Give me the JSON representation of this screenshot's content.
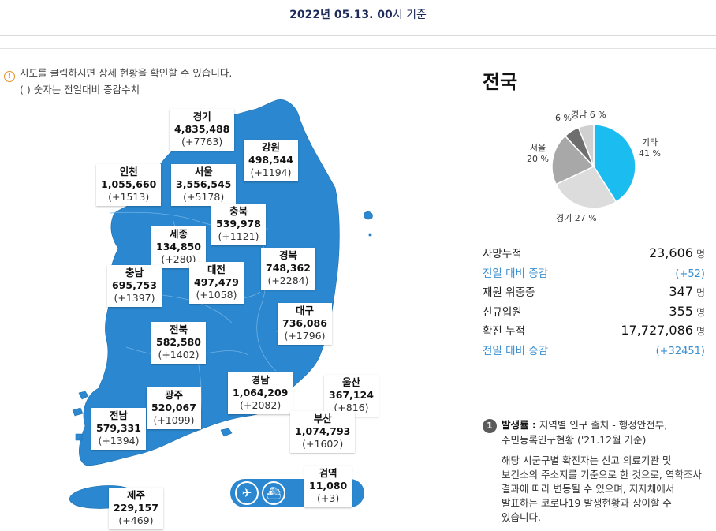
{
  "header": {
    "date_prefix": "2022년 05.13. 00",
    "date_suffix": "시 기준"
  },
  "notice": {
    "line1": "시도를 클릭하시면 상세 현황을 확인할 수 있습니다.",
    "line2": "( ) 숫자는 전일대비 증감수치",
    "icon": "info-icon"
  },
  "regions": [
    {
      "name": "경기",
      "count": "4,835,488",
      "delta": "(+7763)"
    },
    {
      "name": "강원",
      "count": "498,544",
      "delta": "(+1194)"
    },
    {
      "name": "인천",
      "count": "1,055,660",
      "delta": "(+1513)"
    },
    {
      "name": "서울",
      "count": "3,556,545",
      "delta": "(+5178)"
    },
    {
      "name": "충북",
      "count": "539,978",
      "delta": "(+1121)"
    },
    {
      "name": "세종",
      "count": "134,850",
      "delta": "(+280)"
    },
    {
      "name": "경북",
      "count": "748,362",
      "delta": "(+2284)"
    },
    {
      "name": "충남",
      "count": "695,753",
      "delta": "(+1397)"
    },
    {
      "name": "대전",
      "count": "497,479",
      "delta": "(+1058)"
    },
    {
      "name": "대구",
      "count": "736,086",
      "delta": "(+1796)"
    },
    {
      "name": "전북",
      "count": "582,580",
      "delta": "(+1402)"
    },
    {
      "name": "경남",
      "count": "1,064,209",
      "delta": "(+2082)"
    },
    {
      "name": "울산",
      "count": "367,124",
      "delta": "(+816)"
    },
    {
      "name": "광주",
      "count": "520,067",
      "delta": "(+1099)"
    },
    {
      "name": "부산",
      "count": "1,074,793",
      "delta": "(+1602)"
    },
    {
      "name": "전남",
      "count": "579,331",
      "delta": "(+1394)"
    },
    {
      "name": "검역",
      "count": "11,080",
      "delta": "(+3)"
    },
    {
      "name": "제주",
      "count": "229,157",
      "delta": "(+469)"
    }
  ],
  "transport": {
    "airplane_icon": "airplane-icon",
    "ship_icon": "ship-icon"
  },
  "panel": {
    "title": "전국",
    "pie": [
      {
        "label": "기타",
        "pct": "41 %",
        "value": 41,
        "color": "#1bbcf0"
      },
      {
        "label": "경기",
        "pct": "27 %",
        "value": 27,
        "color": "#dcdcdc"
      },
      {
        "label": "서울",
        "pct": "20 %",
        "value": 20,
        "color": "#a8a8a8"
      },
      {
        "label": "",
        "pct": "6 %",
        "value": 6,
        "color": "#6e6e6e"
      },
      {
        "label": "경남",
        "pct": "6 %",
        "value": 6,
        "color": "#d0d0d0"
      }
    ],
    "stats": [
      {
        "key": "사망누적",
        "value": "23,606",
        "unit": "명",
        "sub": false
      },
      {
        "key": "전일 대비 증감",
        "value": "(+52)",
        "unit": "",
        "sub": true
      },
      {
        "key": "재원 위중증",
        "value": "347",
        "unit": "명",
        "sub": false
      },
      {
        "key": "신규입원",
        "value": "355",
        "unit": "명",
        "sub": false
      },
      {
        "key": "확진 누적",
        "value": "17,727,086",
        "unit": "명",
        "sub": false
      },
      {
        "key": "전일 대비 증감",
        "value": "(+32451)",
        "unit": "",
        "sub": true
      }
    ],
    "footnote": {
      "num": "1",
      "title": "발생률 :",
      "line1": "지역별 인구 출처 - 행정안전부,",
      "line2": "주민등록인구현황 ('21.12월 기준)",
      "body1": "해당 시군구별 확진자는 신고 의료기관 및",
      "body2": "보건소의 주소지를 기준으로 한 것으로, 역학조사",
      "body3": "결과에 따라 변동될 수 있으며, 지자체에서",
      "body4": "발표하는 코로나19 발생현황과 상이할 수",
      "body5": "있습니다."
    }
  }
}
